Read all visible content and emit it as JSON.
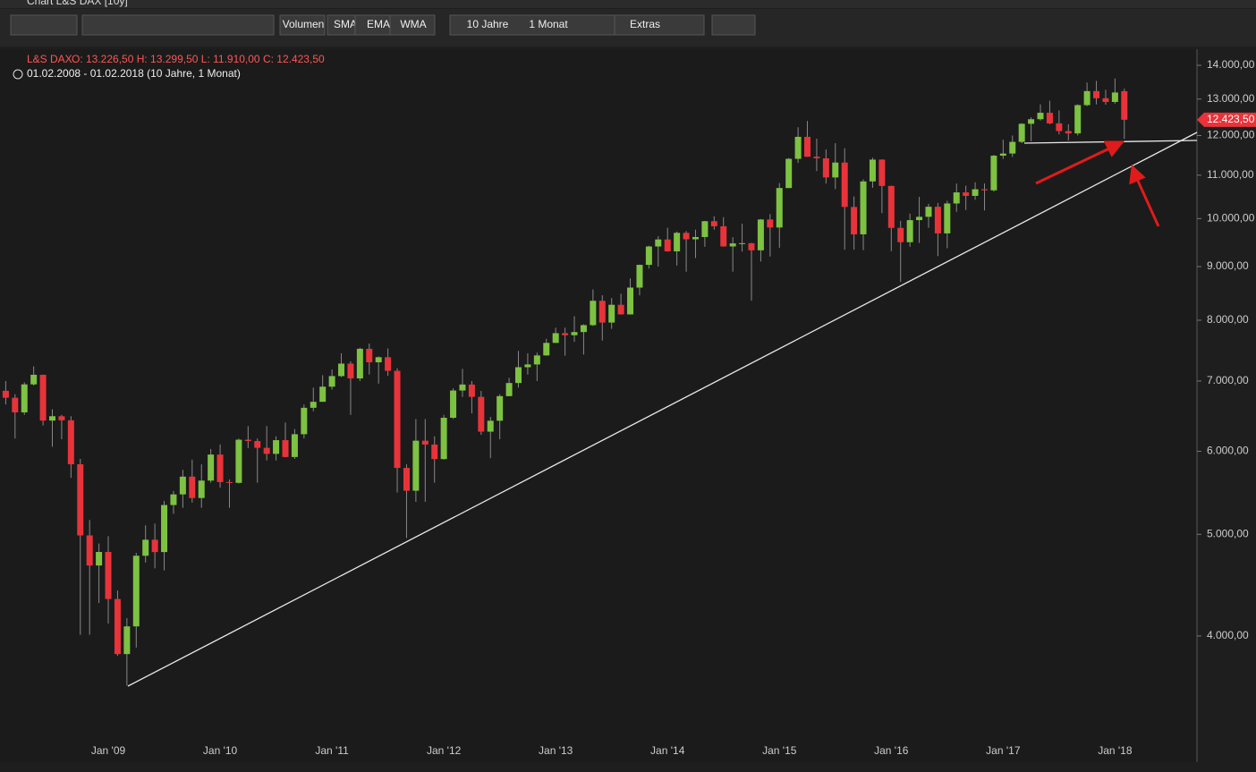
{
  "window_title": "Chart L&S DAX [10y]",
  "toolbar": [
    "Volumen",
    "SMA",
    "EMA",
    "WMA",
    "10 Jahre",
    "1 Monat",
    "Extras"
  ],
  "chart_data": {
    "type": "candlestick",
    "symbol": "L&S DAX",
    "ohlc_label": "O: 13.226,50  H: 13.299,50  L: 11.910,00  C: 12.423,50",
    "range_label": "01.02.2008 - 01.02.2018 (10 Jahre, 1 Monat)",
    "last_label": "12.423,50",
    "up_color": "#7dc242",
    "down_color": "#e8333a",
    "log_scale": true,
    "grid": false,
    "ylim": [
      3044,
      14419
    ],
    "yticks": [
      {
        "value": 4000,
        "label": "4.000,00"
      },
      {
        "value": 5000,
        "label": "5.000,00"
      },
      {
        "value": 6000,
        "label": "6.000,00"
      },
      {
        "value": 7000,
        "label": "7.000,00"
      },
      {
        "value": 8000,
        "label": "8.000,00"
      },
      {
        "value": 9000,
        "label": "9.000,00"
      },
      {
        "value": 10000,
        "label": "10.000,00"
      },
      {
        "value": 11000,
        "label": "11.000,00"
      },
      {
        "value": 12000,
        "label": "12.000,00"
      },
      {
        "value": 13000,
        "label": "13.000,00"
      },
      {
        "value": 14000,
        "label": "14.000,00"
      }
    ],
    "categories": [
      null,
      null,
      null,
      null,
      null,
      null,
      null,
      null,
      null,
      null,
      null,
      "Jan '09",
      null,
      null,
      null,
      null,
      null,
      null,
      null,
      null,
      null,
      null,
      null,
      "Jan '10",
      null,
      null,
      null,
      null,
      null,
      null,
      null,
      null,
      null,
      null,
      null,
      "Jan '11",
      null,
      null,
      null,
      null,
      null,
      null,
      null,
      null,
      null,
      null,
      null,
      "Jan '12",
      null,
      null,
      null,
      null,
      null,
      null,
      null,
      null,
      null,
      null,
      null,
      "Jan '13",
      null,
      null,
      null,
      null,
      null,
      null,
      null,
      null,
      null,
      null,
      null,
      "Jan '14",
      null,
      null,
      null,
      null,
      null,
      null,
      null,
      null,
      null,
      null,
      null,
      "Jan '15",
      null,
      null,
      null,
      null,
      null,
      null,
      null,
      null,
      null,
      null,
      null,
      "Jan '16",
      null,
      null,
      null,
      null,
      null,
      null,
      null,
      null,
      null,
      null,
      null,
      "Jan '17",
      null,
      null,
      null,
      null,
      null,
      null,
      null,
      null,
      null,
      null,
      null,
      "Jan '18",
      null
    ],
    "open": [
      6852,
      6748,
      6535,
      6949,
      7097,
      6418,
      6480,
      6422,
      5831,
      4988,
      4669,
      4810,
      4338,
      3844,
      4085,
      4770,
      4941,
      4809,
      5332,
      5458,
      5675,
      5415,
      5626,
      5957,
      5608,
      5598,
      6154,
      6136,
      6046,
      5966,
      6148,
      5925,
      6229,
      6601,
      6688,
      6914,
      7077,
      7273,
      7041,
      7514,
      7294,
      7376,
      7159,
      5785,
      5502,
      6141,
      6089,
      5898,
      6458,
      6856,
      6947,
      6761,
      6264,
      6416,
      6772,
      6970,
      7216,
      7260,
      7405,
      7612,
      7776,
      7741,
      7795,
      7914,
      8349,
      7959,
      8276,
      8103,
      8594,
      9034,
      9406,
      9552,
      9306,
      9692,
      9556,
      9603,
      9943,
      9833,
      9407,
      9470,
      9474,
      9327,
      9980,
      9806,
      10694,
      11402,
      11966,
      11454,
      11414,
      10945,
      11309,
      10259,
      9660,
      10850,
      11382,
      10743,
      9798,
      9495,
      9966,
      10039,
      10263,
      9680,
      10337,
      10592,
      10511,
      10665,
      10640,
      11481,
      11535,
      11834,
      12313,
      12438,
      12615,
      12325,
      12118,
      12056,
      12829,
      13230,
      13024,
      12918,
      13226.5
    ],
    "high": [
      7000,
      6800,
      6980,
      7230,
      7100,
      6580,
      6500,
      6480,
      5900,
      5160,
      4900,
      4980,
      4420,
      4160,
      4800,
      5100,
      5120,
      5380,
      5500,
      5760,
      5890,
      5830,
      6030,
      6090,
      5640,
      6170,
      6340,
      6170,
      6340,
      6200,
      6390,
      6300,
      6650,
      6900,
      7090,
      7180,
      7440,
      7310,
      7530,
      7600,
      7390,
      7520,
      7200,
      5830,
      6440,
      6440,
      6200,
      6500,
      6890,
      7190,
      7000,
      6850,
      6470,
      6800,
      7050,
      7480,
      7440,
      7450,
      7680,
      7870,
      7870,
      8070,
      7930,
      8560,
      8450,
      8400,
      8480,
      8770,
      9040,
      9420,
      9620,
      9800,
      9720,
      9730,
      9760,
      9950,
      10050,
      10030,
      9600,
      9890,
      9480,
      9990,
      10100,
      10810,
      11420,
      12220,
      12390,
      11920,
      11640,
      11800,
      11670,
      10500,
      10900,
      11430,
      11390,
      10750,
      9950,
      10110,
      10490,
      10330,
      10350,
      10400,
      10800,
      10750,
      10830,
      10800,
      11500,
      11890,
      12000,
      12330,
      12490,
      12850,
      12950,
      12680,
      12300,
      12850,
      13480,
      13530,
      13270,
      13600,
      13299.5
    ],
    "low": [
      6650,
      6170,
      6500,
      6930,
      6350,
      6060,
      6160,
      5660,
      4010,
      4010,
      4300,
      4110,
      3830,
      3588,
      3900,
      4700,
      4640,
      4620,
      5230,
      5300,
      5360,
      5300,
      5600,
      5540,
      5300,
      5590,
      6040,
      5600,
      5880,
      5880,
      5920,
      5900,
      6170,
      6550,
      6690,
      6870,
      7060,
      6500,
      7000,
      7100,
      6960,
      7080,
      5480,
      4960,
      5370,
      5370,
      5600,
      5890,
      6440,
      6760,
      6520,
      6220,
      5910,
      6160,
      6770,
      6900,
      7100,
      7000,
      7400,
      7610,
      7400,
      7630,
      7420,
      7900,
      7650,
      7850,
      8100,
      8100,
      8450,
      8960,
      9000,
      9300,
      9020,
      8900,
      9170,
      9400,
      9760,
      9400,
      8900,
      9300,
      8350,
      9100,
      9200,
      9380,
      10690,
      11300,
      11450,
      11100,
      10800,
      10670,
      9340,
      9340,
      9330,
      10700,
      10120,
      9310,
      8700,
      9400,
      9480,
      9800,
      9210,
      9370,
      10150,
      10190,
      10420,
      10180,
      10610,
      11400,
      11450,
      11800,
      11850,
      12400,
      12300,
      12030,
      11870,
      12000,
      12800,
      12850,
      12840,
      12870,
      11910
    ],
    "close": [
      6748,
      6535,
      6949,
      7097,
      6418,
      6480,
      6422,
      5831,
      4988,
      4669,
      4810,
      4338,
      3844,
      4085,
      4770,
      4941,
      4809,
      5332,
      5458,
      5675,
      5415,
      5626,
      5957,
      5608,
      5598,
      6154,
      6136,
      6046,
      5966,
      6148,
      5925,
      6229,
      6601,
      6688,
      6914,
      7077,
      7273,
      7041,
      7514,
      7294,
      7376,
      7159,
      5785,
      5502,
      6141,
      6089,
      5898,
      6458,
      6856,
      6947,
      6761,
      6264,
      6416,
      6772,
      6970,
      7216,
      7260,
      7405,
      7612,
      7776,
      7741,
      7795,
      7914,
      8349,
      7959,
      8276,
      8103,
      8594,
      9034,
      9406,
      9552,
      9306,
      9692,
      9556,
      9603,
      9943,
      9833,
      9407,
      9470,
      9474,
      9327,
      9980,
      9806,
      10694,
      11402,
      11966,
      11454,
      11414,
      10945,
      11309,
      10259,
      9660,
      10850,
      11382,
      10743,
      9798,
      9495,
      9966,
      10039,
      10263,
      9680,
      10337,
      10592,
      10511,
      10665,
      10640,
      11481,
      11535,
      11834,
      12313,
      12438,
      12615,
      12325,
      12118,
      12056,
      12829,
      13230,
      13024,
      12918,
      13189,
      12423.5
    ]
  }
}
